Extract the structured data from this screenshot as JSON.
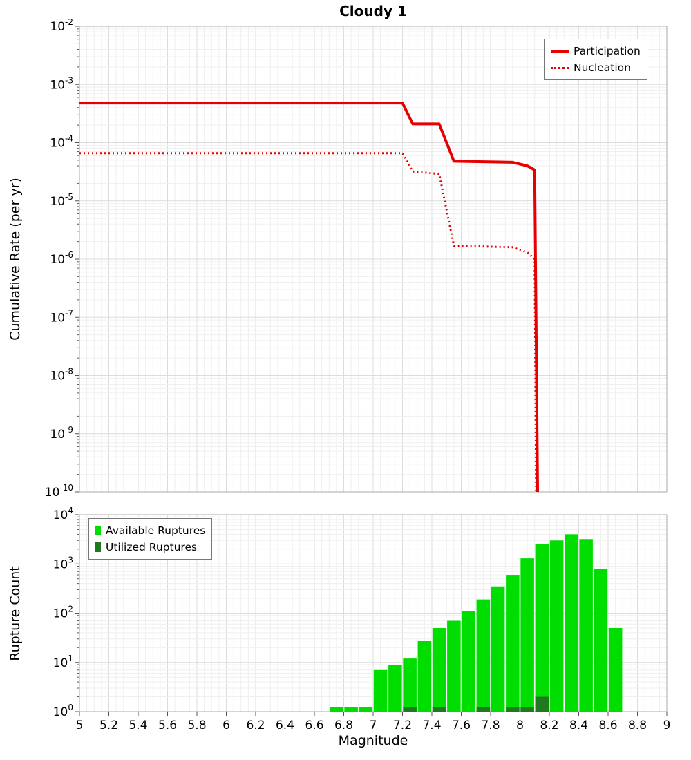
{
  "chart_data": [
    {
      "type": "line",
      "title": "Cloudy 1",
      "xlabel": "Magnitude",
      "ylabel": "Cumulative Rate (per yr)",
      "xlim": [
        5,
        9
      ],
      "ylim": [
        1e-10,
        0.01
      ],
      "y_scale": "log",
      "y_tick_exponents": [
        -2,
        -3,
        -4,
        -5,
        -6,
        -7,
        -8,
        -9,
        -10
      ],
      "grid": true,
      "legend_position": "top-right",
      "series": [
        {
          "name": "Participation",
          "style": "solid",
          "color": "#e60000",
          "points": [
            [
              5.0,
              0.00048
            ],
            [
              7.2,
              0.00048
            ],
            [
              7.27,
              0.00021
            ],
            [
              7.45,
              0.00021
            ],
            [
              7.55,
              4.8e-05
            ],
            [
              7.95,
              4.6e-05
            ],
            [
              8.05,
              4e-05
            ],
            [
              8.1,
              3.4e-05
            ],
            [
              8.12,
              1e-10
            ]
          ]
        },
        {
          "name": "Nucleation",
          "style": "dotted",
          "color": "#e60000",
          "points": [
            [
              5.0,
              6.6e-05
            ],
            [
              7.2,
              6.6e-05
            ],
            [
              7.27,
              3.2e-05
            ],
            [
              7.45,
              2.9e-05
            ],
            [
              7.55,
              1.7e-06
            ],
            [
              7.95,
              1.6e-06
            ],
            [
              8.05,
              1.3e-06
            ],
            [
              8.1,
              1e-06
            ],
            [
              8.11,
              1e-10
            ]
          ]
        }
      ]
    },
    {
      "type": "bar",
      "xlabel": "Magnitude",
      "ylabel": "Rupture Count",
      "xlim": [
        5,
        9
      ],
      "ylim": [
        1,
        10000
      ],
      "y_scale": "log",
      "y_tick_exponents": [
        0,
        1,
        2,
        3,
        4
      ],
      "x_ticks": [
        5,
        5.2,
        5.4,
        5.6,
        5.8,
        6,
        6.2,
        6.4,
        6.6,
        6.8,
        7,
        7.2,
        7.4,
        7.6,
        7.8,
        8,
        8.2,
        8.4,
        8.6,
        8.8,
        9
      ],
      "bin_width": 0.1,
      "grid": true,
      "legend_position": "top-left",
      "series": [
        {
          "name": "Available Ruptures",
          "color": "#00dd00",
          "bins": [
            [
              6.75,
              1
            ],
            [
              6.85,
              1
            ],
            [
              6.95,
              1
            ],
            [
              7.05,
              7
            ],
            [
              7.15,
              9
            ],
            [
              7.25,
              12
            ],
            [
              7.35,
              27
            ],
            [
              7.45,
              50
            ],
            [
              7.55,
              70
            ],
            [
              7.65,
              110
            ],
            [
              7.75,
              190
            ],
            [
              7.85,
              350
            ],
            [
              7.95,
              600
            ],
            [
              8.05,
              1300
            ],
            [
              8.15,
              2500
            ],
            [
              8.25,
              3000
            ],
            [
              8.35,
              4000
            ],
            [
              8.45,
              3200
            ],
            [
              8.55,
              800
            ],
            [
              8.65,
              50
            ]
          ]
        },
        {
          "name": "Utilized Ruptures",
          "color": "#1f7a1f",
          "bins": [
            [
              7.25,
              1
            ],
            [
              7.45,
              1
            ],
            [
              7.75,
              1
            ],
            [
              7.95,
              1
            ],
            [
              8.05,
              1
            ],
            [
              8.15,
              2
            ]
          ]
        }
      ]
    }
  ],
  "colors": {
    "line_red": "#e60000",
    "available_green": "#00dd00",
    "utilized_green": "#1f7a1f",
    "grid_major": "#dcdcdc",
    "grid_minor": "#efefef",
    "axis": "#aaaaaa",
    "tick": "#555555"
  }
}
